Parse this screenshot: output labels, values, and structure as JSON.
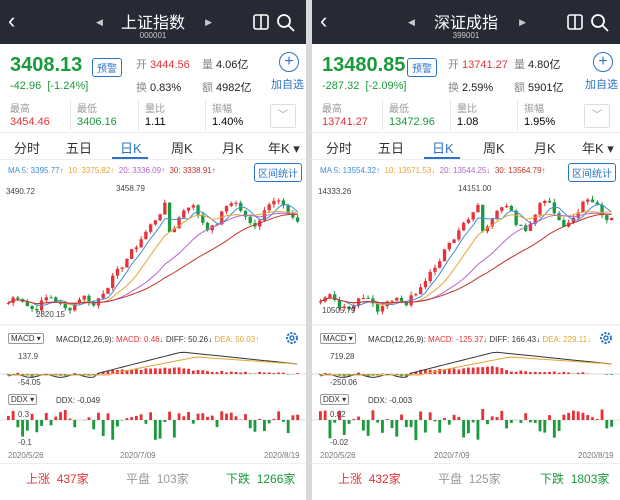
{
  "colors": {
    "up": "#e5333a",
    "down": "#1a9a3c",
    "accent": "#2b73c8",
    "ma5": "#3b8fd8",
    "ma10": "#e6a434",
    "ma20": "#b766cc",
    "ma30": "#c4332c",
    "header": "#262a35"
  },
  "icons": [
    "back-icon",
    "prev-triangle-icon",
    "next-triangle-icon",
    "share-icon",
    "search-icon",
    "plus-circle-icon",
    "chevron-down-icon",
    "gear-icon",
    "dropdown-triangle-icon"
  ],
  "panels": [
    {
      "title": "上证指数",
      "code": "000001",
      "price": "3408.13",
      "warn_label": "预警",
      "change": "-42.96",
      "change_pct": "[-1.24%]",
      "open_label": "开",
      "open": "3444.56",
      "vol_label": "量",
      "vol": "4.06亿",
      "turn_label": "换",
      "turn": "0.83%",
      "amt_label": "额",
      "amt": "4982亿",
      "add_label": "加自选",
      "high_label": "最高",
      "high": "3454.46",
      "low_label": "最低",
      "low": "3406.16",
      "vr_label": "量比",
      "vr": "1.11",
      "amp_label": "振幅",
      "amp": "1.40%",
      "tabs": [
        "分时",
        "五日",
        "日K",
        "周K",
        "月K",
        "年K ▾"
      ],
      "ma": {
        "ma5": "MA 5: 3395.77↑",
        "ma10": "10: 3375.82↑",
        "ma20": "20: 3336.09↑",
        "ma30": "30: 3338.91↑"
      },
      "stat_label": "区间统计",
      "y_top": "3490.72",
      "peak": "3458.79",
      "low_mark": "2820.15",
      "macd_sel": "MACD ▾",
      "macd_param": "MACD(12,26,9):",
      "macd": "MACD: 0.46↓",
      "diff": "DIFF: 50.26↓",
      "dea": "DEA: 50.03↑",
      "macd_top": "137.9",
      "macd_bot": "-54.05",
      "ddx_sel": "DDX ▾",
      "ddx": "DDX: -0.049",
      "ddx_top": "0.3",
      "ddx_bot": "-0.1",
      "dates": [
        "2020/5/26",
        "2020/7/09",
        "2020/8/19"
      ],
      "up_label": "上涨",
      "up": "437家",
      "flat_label": "平盘",
      "flat": "103家",
      "down_label": "下跌",
      "down": "1266家"
    },
    {
      "title": "深证成指",
      "code": "399001",
      "price": "13480.85",
      "warn_label": "预警",
      "change": "-287.32",
      "change_pct": "[-2.09%]",
      "open_label": "开",
      "open": "13741.27",
      "vol_label": "量",
      "vol": "4.80亿",
      "turn_label": "换",
      "turn": "2.59%",
      "amt_label": "额",
      "amt": "5901亿",
      "add_label": "加自选",
      "high_label": "最高",
      "high": "13741.27",
      "low_label": "最低",
      "low": "13472.96",
      "vr_label": "量比",
      "vr": "1.08",
      "amp_label": "振幅",
      "amp": "1.95%",
      "tabs": [
        "分时",
        "五日",
        "日K",
        "周K",
        "月K",
        "年K ▾"
      ],
      "ma": {
        "ma5": "MA 5: 13554.32↑",
        "ma10": "10: 13571.53↓",
        "ma20": "20: 13544.25↓",
        "ma30": "30: 13564.79↑"
      },
      "stat_label": "区间统计",
      "y_top": "14333.26",
      "peak": "14151.00",
      "low_mark": "10505.79",
      "macd_sel": "MACD ▾",
      "macd_param": "MACD(12,26,9):",
      "macd": "MACD: -125.37↓",
      "diff": "DIFF: 166.43↓",
      "dea": "DEA: 229.11↓",
      "macd_top": "719.28",
      "macd_bot": "-250.06",
      "ddx_sel": "DDX ▾",
      "ddx": "DDX: -0.003",
      "ddx_top": "0.02",
      "ddx_bot": "-0.02",
      "dates": [
        "2020/5/26",
        "2020/7/09",
        "2020/8/19"
      ],
      "up_label": "上涨",
      "up": "432家",
      "flat_label": "平盘",
      "flat": "125家",
      "down_label": "下跌",
      "down": "1803家"
    }
  ]
}
